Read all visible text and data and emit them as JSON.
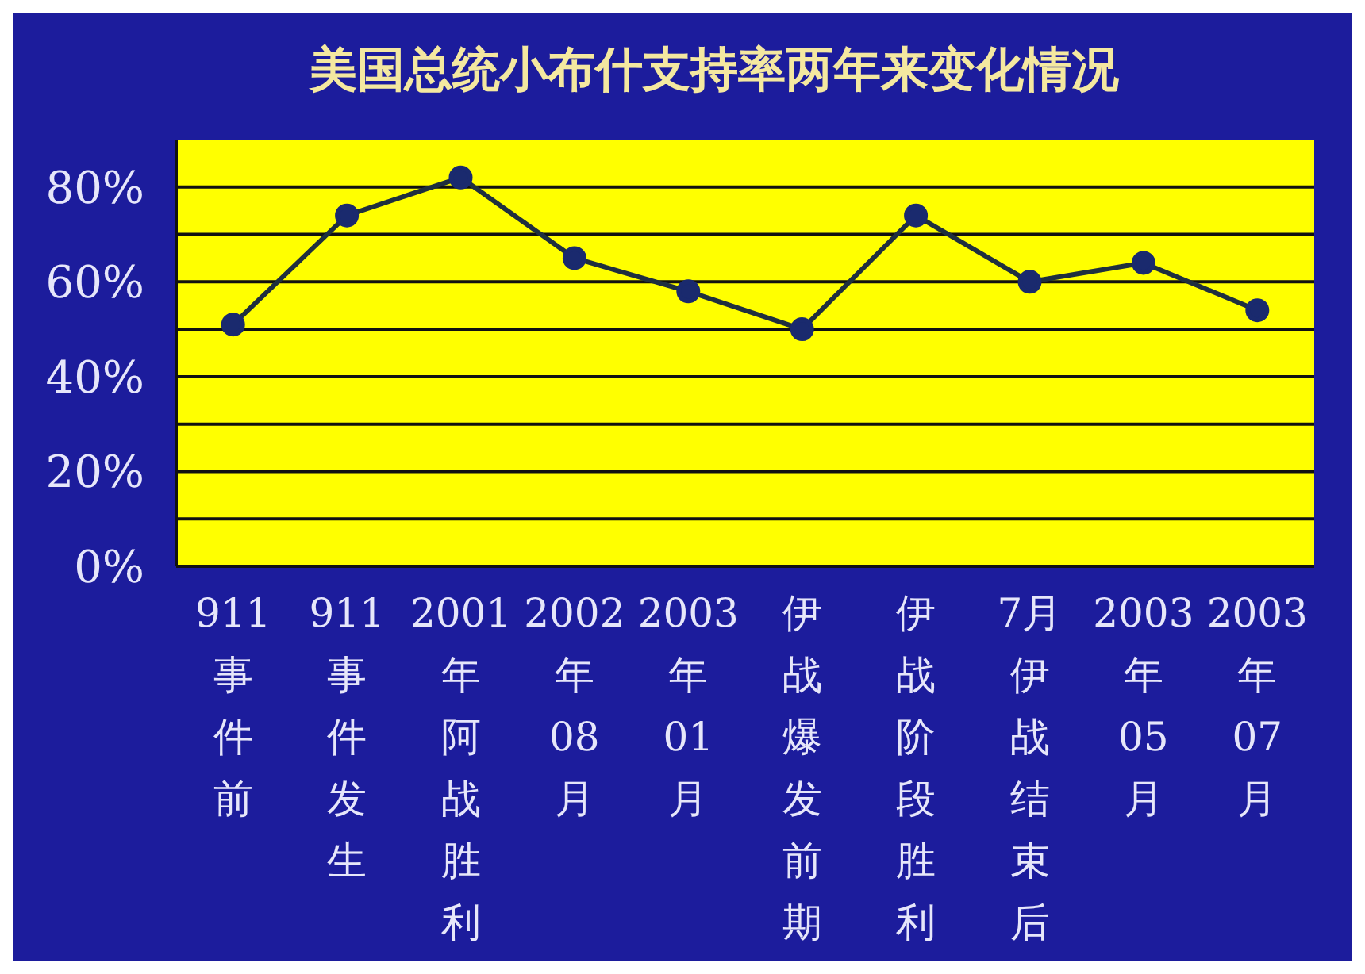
{
  "chart_data": {
    "type": "line",
    "title": "美国总统小布什支持率两年来变化情况",
    "categories": [
      "911事件前",
      "911事件发生",
      "2001年阿战胜利",
      "2002年08月",
      "2003年01月",
      "伊战爆发前期",
      "伊战阶段胜利",
      "7月伊战结束后",
      "2003年05月",
      "2003年07月"
    ],
    "series": [
      {
        "color": "#1f2f3f",
        "values": [
          51,
          74,
          82,
          65,
          58,
          50,
          74,
          60,
          64,
          54
        ]
      }
    ],
    "ylim": [
      0,
      90
    ],
    "yticks": [
      {
        "value": 0,
        "label": "0%"
      },
      {
        "value": 10,
        "label": null
      },
      {
        "value": 20,
        "label": "20%"
      },
      {
        "value": 30,
        "label": null
      },
      {
        "value": 40,
        "label": "40%"
      },
      {
        "value": 50,
        "label": null
      },
      {
        "value": 60,
        "label": "60%"
      },
      {
        "value": 70,
        "label": null
      },
      {
        "value": 80,
        "label": "80%"
      }
    ],
    "grid": "y",
    "marker": "circle",
    "line_style": "solid"
  }
}
